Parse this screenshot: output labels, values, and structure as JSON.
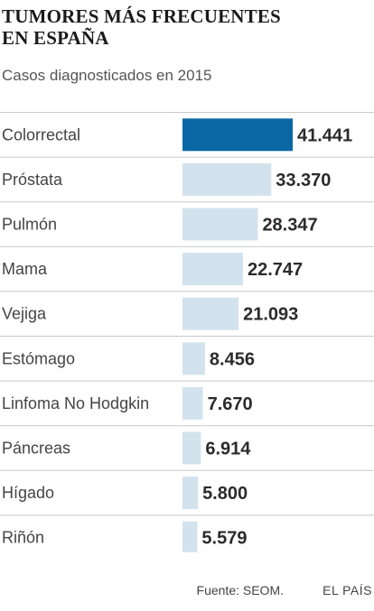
{
  "header": {
    "title_line1": "TUMORES MÁS FRECUENTES",
    "title_line2": "EN ESPAÑA",
    "subtitle": "Casos diagnosticados en 2015"
  },
  "footer": {
    "source": "Fuente: SEOM.",
    "brand": "EL PAÍS"
  },
  "colors": {
    "highlight": "#0b68a4",
    "bar": "#d3e3ee",
    "rule": "#c8c8c8",
    "value_text": "#2b2b2b",
    "label_text": "#444444"
  },
  "chart_data": {
    "type": "bar",
    "orientation": "horizontal",
    "title": "TUMORES MÁS FRECUENTES EN ESPAÑA",
    "subtitle": "Casos diagnosticados en 2015",
    "categories": [
      "Colorrectal",
      "Próstata",
      "Pulmón",
      "Mama",
      "Vejiga",
      "Estómago",
      "Linfoma No Hodgkin",
      "Páncreas",
      "Hígado",
      "Riñón"
    ],
    "values": [
      41441,
      33370,
      28347,
      22747,
      21093,
      8456,
      7670,
      6914,
      5800,
      5579
    ],
    "value_labels": [
      "41.441",
      "33.370",
      "28.347",
      "22.747",
      "21.093",
      "8.456",
      "7.670",
      "6.914",
      "5.800",
      "5.579"
    ],
    "highlighted_category": "Colorrectal",
    "xlim": [
      0,
      41441
    ],
    "grid": false,
    "legend": "none"
  }
}
